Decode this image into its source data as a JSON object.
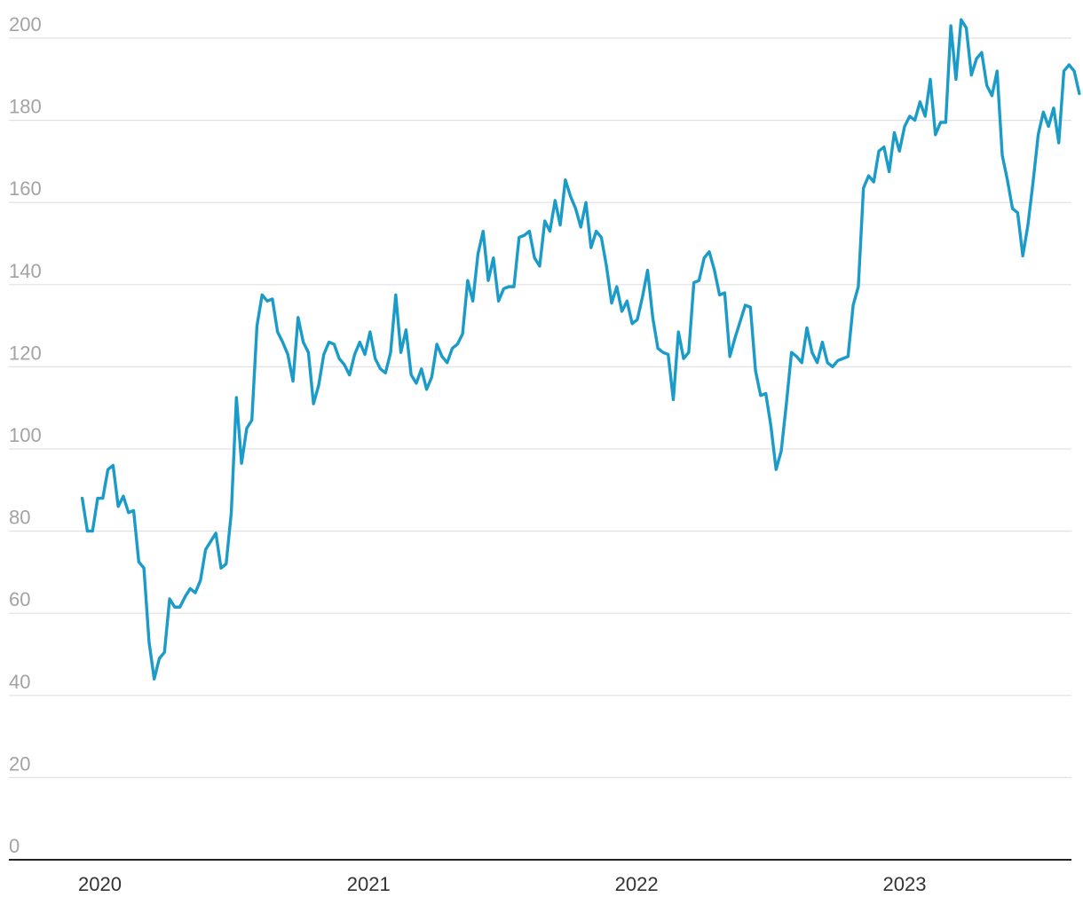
{
  "chart_data": {
    "type": "line",
    "title": "",
    "xlabel": "",
    "ylabel": "",
    "ylim": [
      0,
      200
    ],
    "yticks": [
      0,
      20,
      40,
      60,
      80,
      100,
      120,
      140,
      160,
      180,
      200
    ],
    "xlim": [
      "2019-08-18",
      "2023-09-01"
    ],
    "xticks": [
      "2020",
      "2021",
      "2022",
      "2023"
    ],
    "xtick_dates": [
      "2020-01-01",
      "2021-01-01",
      "2022-01-01",
      "2023-01-01"
    ],
    "grid": true,
    "legend": "none",
    "color": "#1a9bc8",
    "series": [
      {
        "x": [
          "2019-12-08",
          "2019-12-15",
          "2019-12-22",
          "2019-12-29",
          "2020-01-05",
          "2020-01-12",
          "2020-01-19",
          "2020-01-26",
          "2020-02-02",
          "2020-02-09",
          "2020-02-16",
          "2020-02-23",
          "2020-03-01",
          "2020-03-08",
          "2020-03-15",
          "2020-03-22",
          "2020-03-29",
          "2020-04-05",
          "2020-04-12",
          "2020-04-19",
          "2020-04-26",
          "2020-05-03",
          "2020-05-10",
          "2020-05-17",
          "2020-05-24",
          "2020-05-31",
          "2020-06-07",
          "2020-06-14",
          "2020-06-21",
          "2020-06-28",
          "2020-07-05",
          "2020-07-12",
          "2020-07-19",
          "2020-07-26",
          "2020-08-02",
          "2020-08-09",
          "2020-08-16",
          "2020-08-23",
          "2020-08-30",
          "2020-09-06",
          "2020-09-13",
          "2020-09-20",
          "2020-09-27",
          "2020-10-04",
          "2020-10-11",
          "2020-10-18",
          "2020-10-25",
          "2020-11-01",
          "2020-11-08",
          "2020-11-15",
          "2020-11-22",
          "2020-11-29",
          "2020-12-06",
          "2020-12-13",
          "2020-12-20",
          "2020-12-27",
          "2021-01-03",
          "2021-01-10",
          "2021-01-17",
          "2021-01-24",
          "2021-01-31",
          "2021-02-07",
          "2021-02-14",
          "2021-02-21",
          "2021-02-28",
          "2021-03-07",
          "2021-03-14",
          "2021-03-21",
          "2021-03-28",
          "2021-04-04",
          "2021-04-11",
          "2021-04-18",
          "2021-04-25",
          "2021-05-02",
          "2021-05-09",
          "2021-05-16",
          "2021-05-23",
          "2021-05-30",
          "2021-06-06",
          "2021-06-13",
          "2021-06-20",
          "2021-06-27",
          "2021-07-04",
          "2021-07-11",
          "2021-07-18",
          "2021-07-25",
          "2021-08-01",
          "2021-08-08",
          "2021-08-15",
          "2021-08-22",
          "2021-08-29",
          "2021-09-05",
          "2021-09-12",
          "2021-09-19",
          "2021-09-26",
          "2021-10-03",
          "2021-10-10",
          "2021-10-17",
          "2021-10-24",
          "2021-10-31",
          "2021-11-07",
          "2021-11-14",
          "2021-11-21",
          "2021-11-28",
          "2021-12-05",
          "2021-12-12",
          "2021-12-19",
          "2021-12-26",
          "2022-01-02",
          "2022-01-09",
          "2022-01-16",
          "2022-01-23",
          "2022-01-30",
          "2022-02-06",
          "2022-02-13",
          "2022-02-20",
          "2022-02-27",
          "2022-03-06",
          "2022-03-13",
          "2022-03-20",
          "2022-03-27",
          "2022-04-03",
          "2022-04-10",
          "2022-04-17",
          "2022-04-24",
          "2022-05-01",
          "2022-05-08",
          "2022-05-15",
          "2022-05-22",
          "2022-05-29",
          "2022-06-05",
          "2022-06-12",
          "2022-06-19",
          "2022-06-26",
          "2022-07-03",
          "2022-07-10",
          "2022-07-17",
          "2022-07-24",
          "2022-07-31",
          "2022-08-07",
          "2022-08-14",
          "2022-08-21",
          "2022-08-28",
          "2022-09-04",
          "2022-09-11",
          "2022-09-18",
          "2022-09-25",
          "2022-10-02",
          "2022-10-09",
          "2022-10-16",
          "2022-10-23",
          "2022-10-30",
          "2022-11-06",
          "2022-11-13",
          "2022-11-20",
          "2022-11-27",
          "2022-12-04",
          "2022-12-11",
          "2022-12-18",
          "2022-12-25",
          "2023-01-01",
          "2023-01-08",
          "2023-01-15",
          "2023-01-22",
          "2023-01-29",
          "2023-02-05",
          "2023-02-12",
          "2023-02-19",
          "2023-02-26",
          "2023-03-05",
          "2023-03-12",
          "2023-03-19",
          "2023-03-26",
          "2023-04-02",
          "2023-04-09",
          "2023-04-16",
          "2023-04-23",
          "2023-04-30",
          "2023-05-07",
          "2023-05-14",
          "2023-05-21",
          "2023-05-28",
          "2023-06-04",
          "2023-06-11",
          "2023-06-18",
          "2023-06-25",
          "2023-07-02",
          "2023-07-09",
          "2023-07-16",
          "2023-07-23",
          "2023-07-30",
          "2023-08-06",
          "2023-08-13",
          "2023-08-20",
          "2023-08-27"
        ],
        "y": [
          88,
          80,
          80,
          88,
          88,
          95,
          96,
          86,
          88.5,
          84.5,
          85,
          72.5,
          71,
          53,
          44,
          49,
          50.5,
          63.5,
          61.5,
          61.5,
          64,
          66,
          65,
          68,
          75.5,
          77.5,
          79.5,
          71,
          72,
          84.5,
          112.5,
          96.5,
          105,
          107,
          130,
          137.5,
          136,
          136.5,
          128.5,
          126,
          123,
          116.5,
          132,
          126,
          123.5,
          111,
          115.5,
          123,
          126,
          125.5,
          122,
          120.5,
          118,
          123,
          126,
          123,
          128.5,
          122,
          119.5,
          118.5,
          123.5,
          137.5,
          123.5,
          129,
          118,
          116,
          119.5,
          114.5,
          117.5,
          125.5,
          122.5,
          121,
          124.5,
          125.5,
          128,
          141,
          136,
          147.5,
          153,
          141,
          146.5,
          136,
          139,
          139.5,
          139.5,
          151.5,
          152,
          153,
          146.5,
          144.5,
          155.5,
          153,
          160.5,
          154.5,
          165.5,
          161.5,
          158.5,
          154,
          160,
          149,
          153,
          151.5,
          144.5,
          135.5,
          139.5,
          133.5,
          136,
          130.5,
          131.5,
          137,
          143.5,
          132,
          124.5,
          123.5,
          123,
          112,
          128.5,
          122,
          123.5,
          140.5,
          141,
          146.5,
          148,
          143.5,
          137.5,
          138,
          122.5,
          127,
          131,
          135,
          134.5,
          119,
          113,
          113.5,
          105.5,
          95,
          99.5,
          111,
          123.5,
          122.5,
          121,
          129.5,
          123.5,
          121,
          126,
          121,
          120,
          121.5,
          122,
          122.5,
          135,
          139.5,
          163.5,
          166.5,
          165,
          172.5,
          173.5,
          167.5,
          177,
          172.5,
          178.5,
          181,
          180,
          184.5,
          181,
          190,
          176.5,
          179.5,
          179.5,
          203,
          190,
          204.5,
          202.5,
          191,
          195,
          196.5,
          188.5,
          186,
          192,
          171.5,
          165.5,
          158.5,
          157.5,
          147,
          154.5,
          165,
          176.5,
          182,
          178.5,
          183,
          174.5,
          192,
          193.5,
          192,
          186.5
        ]
      }
    ]
  }
}
